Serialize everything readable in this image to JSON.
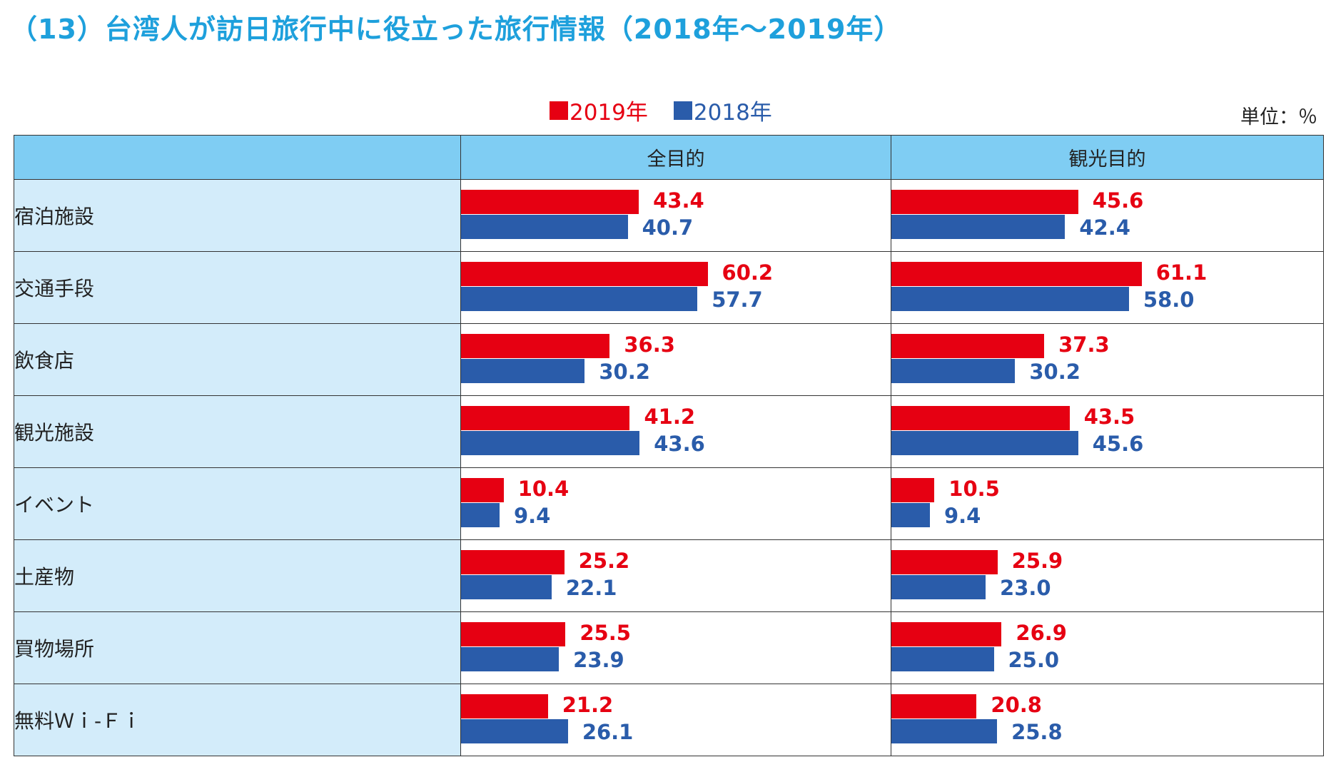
{
  "title": "（13）台湾人が訪日旅行中に役立った旅行情報（2018年～2019年）",
  "unit": "単位：％",
  "colors": {
    "y2019": "#e60012",
    "y2018": "#2a5caa",
    "title": "#1ea0dc",
    "header": "#7fcdf3",
    "category": "#d3ecfa"
  },
  "legend": [
    {
      "label": "2019年",
      "color": "#e60012"
    },
    {
      "label": "2018年",
      "color": "#2a5caa"
    }
  ],
  "chart_data": {
    "type": "bar",
    "orientation": "horizontal",
    "title": "（13）台湾人が訪日旅行中に役立った旅行情報（2018年～2019年）",
    "unit": "％",
    "panels": [
      "全目的",
      "観光目的"
    ],
    "xlim": [
      0,
      100
    ],
    "categories": [
      "宿泊施設",
      "交通手段",
      "飲食店",
      "観光施設",
      "イベント",
      "土産物",
      "買物場所",
      "無料Ｗｉ-Ｆｉ"
    ],
    "series": [
      {
        "name": "2019年",
        "panel": "全目的",
        "values": [
          43.4,
          60.2,
          36.3,
          41.2,
          10.4,
          25.2,
          25.5,
          21.2
        ]
      },
      {
        "name": "2018年",
        "panel": "全目的",
        "values": [
          40.7,
          57.7,
          30.2,
          43.6,
          9.4,
          22.1,
          23.9,
          26.1
        ]
      },
      {
        "name": "2019年",
        "panel": "観光目的",
        "values": [
          45.6,
          61.1,
          37.3,
          43.5,
          10.5,
          25.9,
          26.9,
          20.8
        ]
      },
      {
        "name": "2018年",
        "panel": "観光目的",
        "values": [
          42.4,
          58.0,
          30.2,
          45.6,
          9.4,
          23.0,
          25.0,
          25.8
        ]
      }
    ],
    "value_labels": {
      "全目的": {
        "2019年": [
          "43.4",
          "60.2",
          "36.3",
          "41.2",
          "10.4",
          "25.2",
          "25.5",
          "21.2"
        ],
        "2018年": [
          "40.7",
          "57.7",
          "30.2",
          "43.6",
          "9.4",
          "22.1",
          "23.9",
          "26.1"
        ]
      },
      "観光目的": {
        "2019年": [
          "45.6",
          "61.1",
          "37.3",
          "43.5",
          "10.5",
          "25.9",
          "26.9",
          "20.8"
        ],
        "2018年": [
          "42.4",
          "58.0",
          "30.2",
          "45.6",
          "9.4",
          "23.0",
          "25.0",
          "25.8"
        ]
      }
    },
    "legend_position": "top-center"
  }
}
